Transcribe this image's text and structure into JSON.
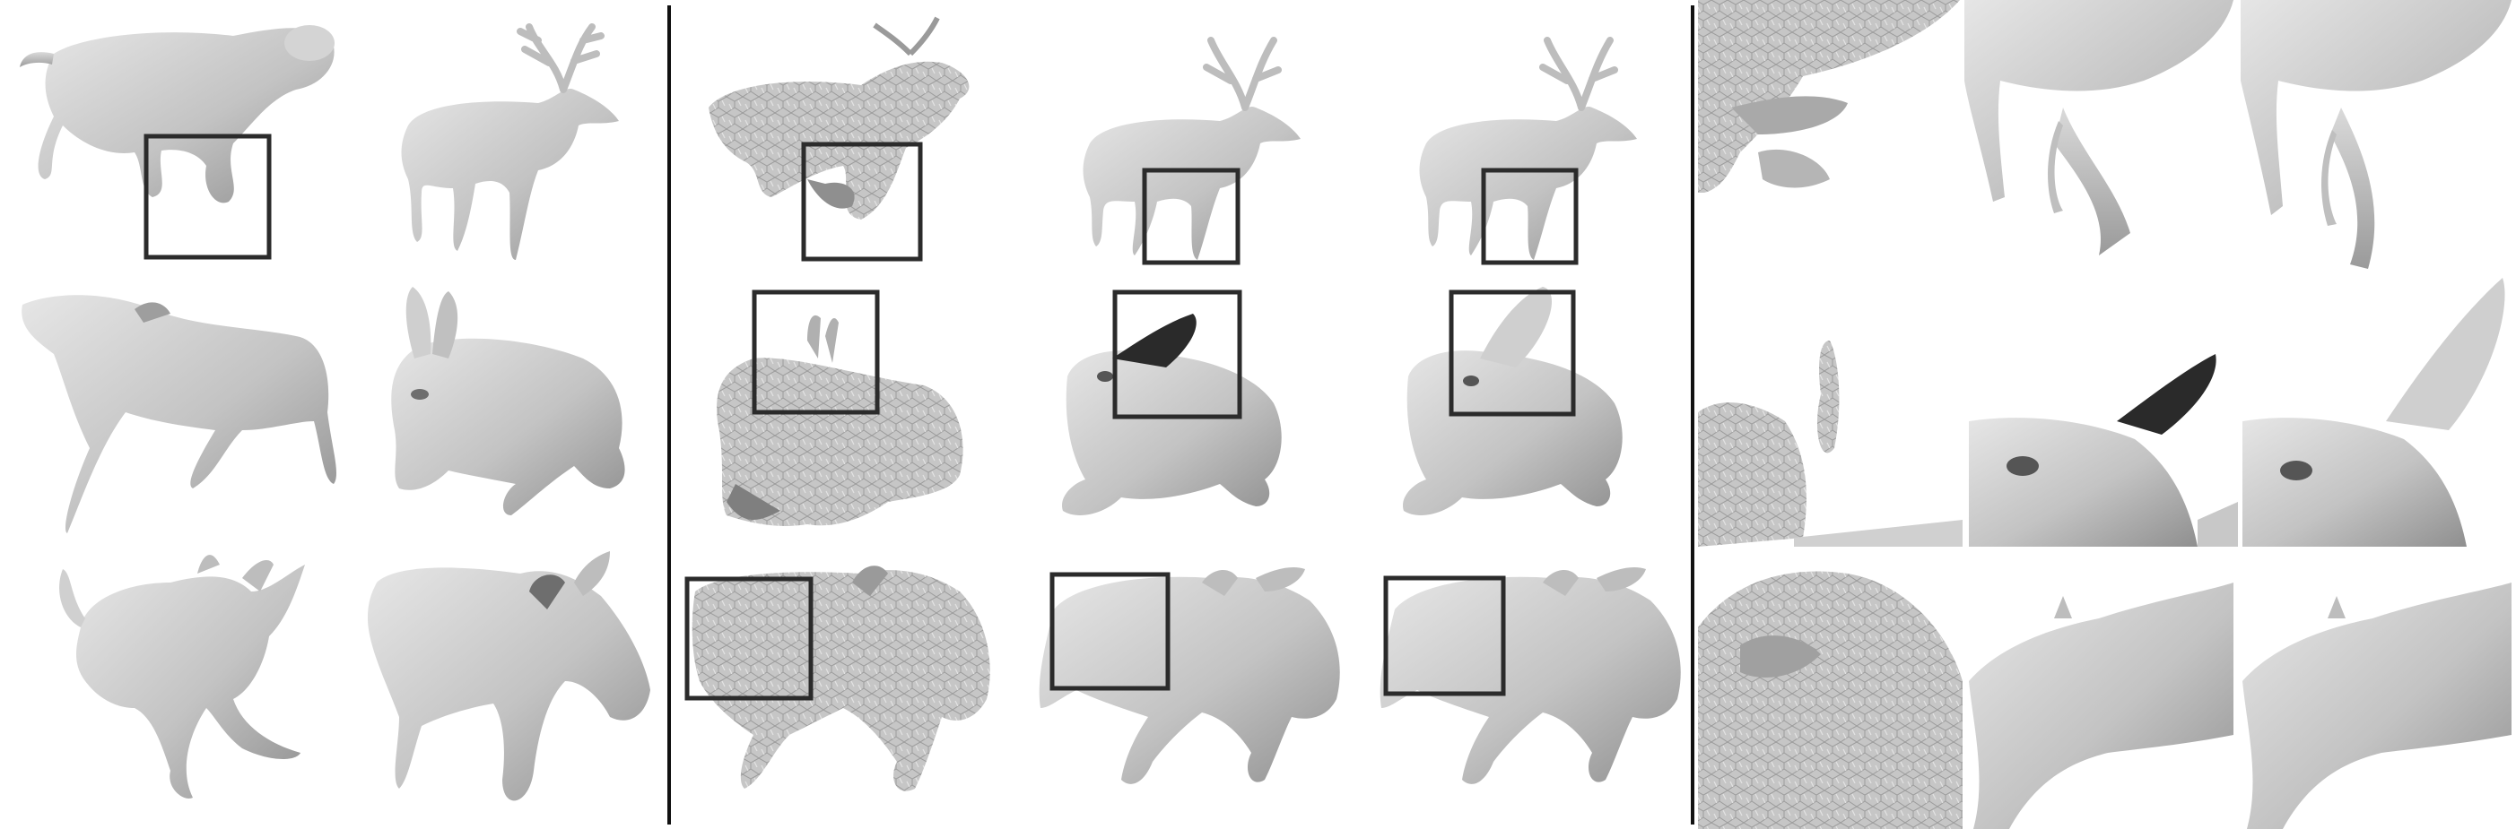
{
  "figure": {
    "sections": [
      {
        "id": "source-shapes",
        "columns": 2,
        "rows": 3
      },
      {
        "id": "mesh-comparisons",
        "columns": 3,
        "rows": 3
      },
      {
        "id": "zoomed-crops",
        "columns": 3,
        "rows": 3
      }
    ],
    "subjects": {
      "row1": [
        "lioness",
        "deer"
      ],
      "row2": [
        "horse",
        "rabbit"
      ],
      "row3": [
        "dog",
        "donkey"
      ]
    },
    "crop_box_color": "#2b2b2b",
    "mesh_color": "#c8c8c8",
    "mesh_shadow_color": "#8e8e8e",
    "divider_color": "#111111"
  }
}
